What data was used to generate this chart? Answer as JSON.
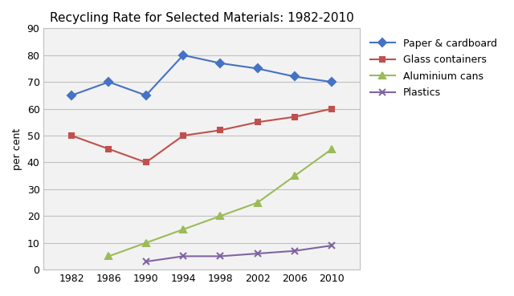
{
  "title": "Recycling Rate for Selected Materials: 1982-2010",
  "ylabel": "per cent",
  "years": [
    1982,
    1986,
    1990,
    1994,
    1998,
    2002,
    2006,
    2010
  ],
  "series": [
    {
      "label": "Paper & cardboard",
      "values": [
        65,
        70,
        65,
        80,
        77,
        75,
        72,
        70
      ],
      "color": "#4472C4",
      "marker": "D",
      "markersize": 5,
      "linewidth": 1.5
    },
    {
      "label": "Glass containers",
      "values": [
        50,
        45,
        40,
        50,
        52,
        55,
        57,
        60
      ],
      "color": "#C0504D",
      "marker": "s",
      "markersize": 5,
      "linewidth": 1.5
    },
    {
      "label": "Aluminium cans",
      "values": [
        null,
        5,
        10,
        15,
        20,
        25,
        35,
        45
      ],
      "color": "#9BBB59",
      "marker": "^",
      "markersize": 6,
      "linewidth": 1.5
    },
    {
      "label": "Plastics",
      "values": [
        null,
        null,
        3,
        5,
        5,
        6,
        7,
        9
      ],
      "color": "#8064A2",
      "marker": "x",
      "markersize": 6,
      "linewidth": 1.5
    }
  ],
  "ylim": [
    0,
    90
  ],
  "yticks": [
    0,
    10,
    20,
    30,
    40,
    50,
    60,
    70,
    80,
    90
  ],
  "xticks": [
    1982,
    1986,
    1990,
    1994,
    1998,
    2002,
    2006,
    2010
  ],
  "grid_color": "#C0C0C0",
  "plot_bg_color": "#F2F2F2",
  "fig_bg_color": "#FFFFFF",
  "title_fontsize": 11,
  "label_fontsize": 9,
  "tick_fontsize": 9,
  "legend_fontsize": 9
}
